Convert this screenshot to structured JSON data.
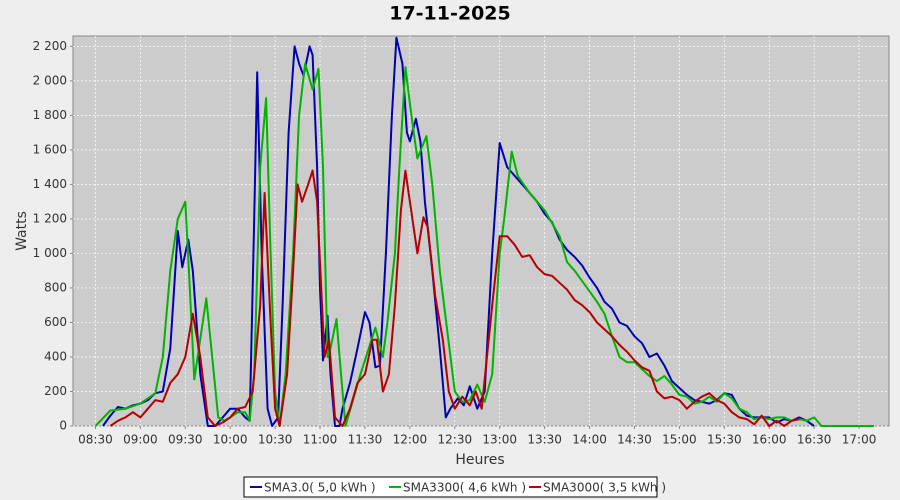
{
  "chart_data": {
    "type": "line",
    "title": "17-11-2025",
    "x_label": "Heures",
    "y_label": "Watts",
    "xlim": [
      "08:15",
      "17:20"
    ],
    "ylim": [
      0,
      2260
    ],
    "xticks": [
      "08:30",
      "09:00",
      "09:30",
      "10:00",
      "10:30",
      "11:00",
      "11:30",
      "12:00",
      "12:30",
      "13:00",
      "13:30",
      "14:00",
      "14:30",
      "15:00",
      "15:30",
      "16:00",
      "16:30",
      "17:00"
    ],
    "yticks": [
      0,
      200,
      400,
      600,
      800,
      {
        "value": 1000,
        "label": "1 000"
      },
      {
        "value": 1200,
        "label": "1 200"
      },
      {
        "value": 1400,
        "label": "1 400"
      },
      {
        "value": 1600,
        "label": "1 600"
      },
      {
        "value": 1800,
        "label": "1 800"
      },
      {
        "value": 2000,
        "label": "2 000"
      },
      {
        "value": 2200,
        "label": "2 200"
      }
    ],
    "grid": true,
    "legend": "bottom",
    "series": [
      {
        "name": "SMA3.0( 5,0 kWh )",
        "color": "#0000b4",
        "x": [
          "08:35",
          "08:40",
          "08:45",
          "08:50",
          "08:55",
          "09:00",
          "09:05",
          "09:10",
          "09:15",
          "09:20",
          "09:25",
          "09:28",
          "09:32",
          "09:35",
          "09:40",
          "09:45",
          "09:50",
          "09:55",
          "10:00",
          "10:05",
          "10:10",
          "10:13",
          "10:16",
          "10:18",
          "10:21",
          "10:25",
          "10:28",
          "10:32",
          "10:35",
          "10:39",
          "10:43",
          "10:46",
          "10:49",
          "10:53",
          "10:55",
          "10:58",
          "11:00",
          "11:02",
          "11:05",
          "11:07",
          "11:10",
          "11:13",
          "11:15",
          "11:20",
          "11:25",
          "11:30",
          "11:33",
          "11:37",
          "11:40",
          "11:44",
          "11:48",
          "11:51",
          "11:55",
          "11:58",
          "12:00",
          "12:04",
          "12:07",
          "12:10",
          "12:15",
          "12:20",
          "12:24",
          "12:27",
          "12:32",
          "12:36",
          "12:40",
          "12:45",
          "12:50",
          "12:55",
          "13:00",
          "13:05",
          "13:10",
          "13:15",
          "13:20",
          "13:25",
          "13:30",
          "13:35",
          "13:40",
          "13:45",
          "13:50",
          "13:55",
          "14:00",
          "14:05",
          "14:10",
          "14:15",
          "14:20",
          "14:25",
          "14:30",
          "14:35",
          "14:40",
          "14:45",
          "14:50",
          "14:55",
          "15:00",
          "15:05",
          "15:10",
          "15:15",
          "15:20",
          "15:25",
          "15:30",
          "15:35",
          "15:40",
          "15:45",
          "15:50",
          "15:55",
          "16:00",
          "16:05",
          "16:10",
          "16:15",
          "16:20",
          "16:25",
          "16:30"
        ],
        "values": [
          0,
          60,
          110,
          100,
          120,
          130,
          150,
          190,
          200,
          450,
          1130,
          920,
          1080,
          900,
          300,
          0,
          0,
          50,
          100,
          100,
          50,
          30,
          1200,
          2050,
          1000,
          100,
          0,
          50,
          700,
          1700,
          2200,
          2100,
          2030,
          2200,
          2150,
          1500,
          800,
          380,
          640,
          300,
          0,
          0,
          100,
          250,
          450,
          660,
          600,
          340,
          350,
          1000,
          1800,
          2250,
          2100,
          1700,
          1650,
          1780,
          1650,
          1300,
          900,
          450,
          50,
          100,
          160,
          120,
          230,
          100,
          200,
          1000,
          1640,
          1500,
          1450,
          1400,
          1350,
          1300,
          1230,
          1180,
          1080,
          1020,
          980,
          930,
          860,
          800,
          720,
          680,
          600,
          580,
          520,
          480,
          400,
          420,
          350,
          260,
          220,
          180,
          150,
          140,
          130,
          150,
          190,
          180,
          100,
          60,
          50,
          50,
          50,
          20,
          40,
          30,
          50,
          30,
          0
        ]
      },
      {
        "name": "SMA3300( 4,6 kWh )",
        "color": "#00b400",
        "x": [
          "08:30",
          "08:40",
          "08:50",
          "09:00",
          "09:10",
          "09:15",
          "09:20",
          "09:25",
          "09:30",
          "09:33",
          "09:36",
          "09:44",
          "09:48",
          "09:52",
          "09:56",
          "10:00",
          "10:05",
          "10:10",
          "10:13",
          "10:16",
          "10:20",
          "10:24",
          "10:27",
          "10:30",
          "10:33",
          "10:37",
          "10:42",
          "10:46",
          "10:50",
          "10:55",
          "10:59",
          "11:02",
          "11:05",
          "11:07",
          "11:11",
          "11:14",
          "11:17",
          "11:22",
          "11:27",
          "11:37",
          "11:42",
          "11:45",
          "11:50",
          "11:53",
          "11:57",
          "12:01",
          "12:05",
          "12:11",
          "12:15",
          "12:20",
          "12:25",
          "12:30",
          "12:35",
          "12:40",
          "12:45",
          "12:50",
          "12:55",
          "13:00",
          "13:03",
          "13:08",
          "13:12",
          "13:20",
          "13:30",
          "13:40",
          "13:45",
          "13:50",
          "14:00",
          "14:05",
          "14:10",
          "14:15",
          "14:20",
          "14:25",
          "14:30",
          "14:35",
          "14:40",
          "14:45",
          "14:50",
          "14:55",
          "15:00",
          "15:05",
          "15:10",
          "15:15",
          "15:20",
          "15:25",
          "15:30",
          "15:35",
          "15:40",
          "15:45",
          "15:50",
          "15:55",
          "16:00",
          "16:05",
          "16:10",
          "16:15",
          "16:20",
          "16:25",
          "16:30",
          "16:35",
          "16:45",
          "17:00",
          "17:10"
        ],
        "values": [
          0,
          90,
          100,
          130,
          190,
          400,
          900,
          1200,
          1300,
          800,
          270,
          740,
          400,
          50,
          30,
          50,
          80,
          80,
          30,
          300,
          1500,
          1900,
          1000,
          200,
          0,
          300,
          1000,
          1800,
          2100,
          1950,
          2070,
          1500,
          400,
          450,
          620,
          300,
          0,
          150,
          300,
          570,
          400,
          600,
          1000,
          1500,
          2080,
          1800,
          1550,
          1680,
          1400,
          900,
          550,
          200,
          140,
          150,
          240,
          140,
          300,
          1000,
          1200,
          1590,
          1450,
          1350,
          1250,
          1100,
          950,
          900,
          780,
          720,
          650,
          520,
          400,
          370,
          370,
          330,
          290,
          260,
          290,
          240,
          180,
          170,
          130,
          140,
          170,
          140,
          190,
          160,
          100,
          80,
          40,
          50,
          40,
          50,
          50,
          30,
          40,
          30,
          50,
          0,
          0,
          0,
          0
        ]
      },
      {
        "name": "SMA3000( 3,5 kWh )",
        "color": "#b40000",
        "x": [
          "08:40",
          "08:45",
          "08:50",
          "08:55",
          "09:00",
          "09:05",
          "09:10",
          "09:15",
          "09:20",
          "09:25",
          "09:30",
          "09:35",
          "09:40",
          "09:45",
          "09:50",
          "09:55",
          "10:00",
          "10:05",
          "10:10",
          "10:15",
          "10:20",
          "10:23",
          "10:27",
          "10:30",
          "10:33",
          "10:38",
          "10:42",
          "10:45",
          "10:48",
          "10:52",
          "10:55",
          "10:58",
          "11:03",
          "11:06",
          "11:10",
          "11:15",
          "11:20",
          "11:25",
          "11:30",
          "11:35",
          "11:38",
          "11:42",
          "11:46",
          "11:50",
          "11:54",
          "11:57",
          "12:00",
          "12:05",
          "12:09",
          "12:12",
          "12:17",
          "12:22",
          "12:26",
          "12:30",
          "12:35",
          "12:40",
          "12:44",
          "12:48",
          "12:55",
          "13:00",
          "13:05",
          "13:10",
          "13:15",
          "13:20",
          "13:25",
          "13:30",
          "13:35",
          "13:40",
          "13:45",
          "13:50",
          "13:55",
          "14:00",
          "14:05",
          "14:10",
          "14:15",
          "14:20",
          "14:25",
          "14:30",
          "14:35",
          "14:40",
          "14:45",
          "14:50",
          "14:55",
          "15:00",
          "15:05",
          "15:10",
          "15:15",
          "15:20",
          "15:25",
          "15:30",
          "15:35",
          "15:40",
          "15:45",
          "15:50",
          "15:55",
          "16:00",
          "16:05",
          "16:10",
          "16:15",
          "16:20"
        ],
        "values": [
          0,
          30,
          50,
          80,
          50,
          100,
          150,
          140,
          250,
          300,
          400,
          650,
          400,
          50,
          0,
          20,
          50,
          100,
          110,
          200,
          700,
          1350,
          600,
          100,
          0,
          300,
          900,
          1400,
          1300,
          1400,
          1480,
          1300,
          400,
          500,
          50,
          0,
          100,
          250,
          300,
          500,
          500,
          200,
          300,
          700,
          1250,
          1480,
          1300,
          1000,
          1210,
          1150,
          750,
          500,
          200,
          100,
          170,
          120,
          200,
          100,
          700,
          1100,
          1100,
          1050,
          980,
          990,
          920,
          880,
          870,
          830,
          790,
          730,
          700,
          660,
          600,
          560,
          520,
          470,
          430,
          380,
          340,
          320,
          200,
          160,
          170,
          150,
          100,
          140,
          170,
          190,
          150,
          130,
          80,
          50,
          40,
          10,
          60,
          0,
          30,
          0,
          30,
          40
        ]
      }
    ]
  }
}
